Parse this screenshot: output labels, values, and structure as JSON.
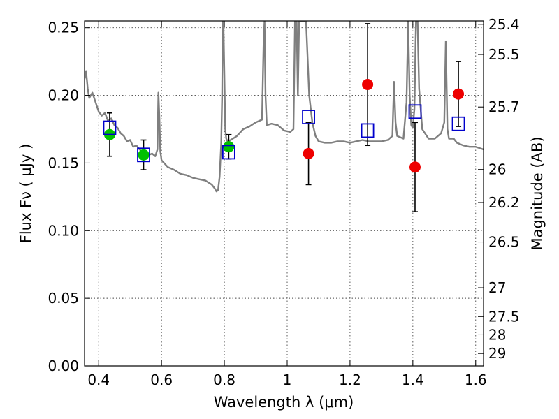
{
  "chart_data": {
    "type": "scatter",
    "xlabel": "Wavelength  λ (μm)",
    "ylabel": "Flux  Fν  ( μJy )",
    "ylabel_right": "Magnitude (AB)",
    "xlim": [
      0.355,
      1.625
    ],
    "ylim": [
      0.0,
      0.255
    ],
    "grid": true,
    "x_ticks": [
      0.4,
      0.6,
      0.8,
      1.0,
      1.2,
      1.4,
      1.6
    ],
    "x_tick_labels": [
      "0.4",
      "0.6",
      "0.8",
      "1",
      "1.2",
      "1.4",
      "1.6"
    ],
    "y_ticks": [
      0.0,
      0.05,
      0.1,
      0.15,
      0.2,
      0.25
    ],
    "y_tick_labels": [
      "0.00",
      "0.05",
      "0.10",
      "0.15",
      "0.20",
      "0.25"
    ],
    "right_ticks": [
      {
        "label": "25.4",
        "flux": 0.2525
      },
      {
        "label": "25.5",
        "flux": 0.2302
      },
      {
        "label": "25.7",
        "flux": 0.1914
      },
      {
        "label": "26",
        "flux": 0.1452
      },
      {
        "label": "26.2",
        "flux": 0.1208
      },
      {
        "label": "26.5",
        "flux": 0.0916
      },
      {
        "label": "27",
        "flux": 0.0578
      },
      {
        "label": "27.5",
        "flux": 0.0365
      },
      {
        "label": "28",
        "flux": 0.023
      },
      {
        "label": "29",
        "flux": 0.0092
      }
    ],
    "colors": {
      "model": "#7f7f7f",
      "model_photometry": "#0000cc",
      "detected": "#00c000",
      "nondetected": "#ee0000",
      "errorbar": "#000000"
    },
    "series": [
      {
        "kind": "model_spectrum",
        "x": [
          0.355,
          0.36,
          0.365,
          0.37,
          0.38,
          0.39,
          0.4,
          0.41,
          0.42,
          0.43,
          0.44,
          0.45,
          0.46,
          0.47,
          0.48,
          0.49,
          0.5,
          0.51,
          0.52,
          0.53,
          0.54,
          0.55,
          0.56,
          0.57,
          0.58,
          0.587,
          0.59,
          0.593,
          0.596,
          0.6,
          0.62,
          0.64,
          0.66,
          0.68,
          0.7,
          0.72,
          0.74,
          0.76,
          0.77,
          0.775,
          0.78,
          0.785,
          0.79,
          0.793,
          0.795,
          0.797,
          0.8,
          0.803,
          0.806,
          0.81,
          0.82,
          0.84,
          0.86,
          0.88,
          0.9,
          0.92,
          0.925,
          0.928,
          0.931,
          0.935,
          0.95,
          0.97,
          0.99,
          1.01,
          1.02,
          1.025,
          1.03,
          1.034,
          1.038,
          1.042,
          1.05,
          1.06,
          1.07,
          1.08,
          1.09,
          1.1,
          1.12,
          1.14,
          1.16,
          1.18,
          1.2,
          1.22,
          1.24,
          1.26,
          1.28,
          1.3,
          1.32,
          1.335,
          1.34,
          1.345,
          1.35,
          1.37,
          1.38,
          1.385,
          1.39,
          1.395,
          1.4,
          1.405,
          1.41,
          1.415,
          1.42,
          1.43,
          1.45,
          1.47,
          1.49,
          1.5,
          1.505,
          1.51,
          1.515,
          1.52,
          1.53,
          1.54,
          1.56,
          1.58,
          1.6,
          1.625
        ],
        "y": [
          0.212,
          0.218,
          0.205,
          0.198,
          0.202,
          0.195,
          0.188,
          0.185,
          0.187,
          0.181,
          0.183,
          0.178,
          0.176,
          0.172,
          0.17,
          0.166,
          0.167,
          0.162,
          0.163,
          0.16,
          0.158,
          0.159,
          0.156,
          0.157,
          0.155,
          0.16,
          0.202,
          0.185,
          0.159,
          0.152,
          0.147,
          0.145,
          0.142,
          0.141,
          0.139,
          0.138,
          0.137,
          0.134,
          0.131,
          0.129,
          0.13,
          0.14,
          0.165,
          0.2,
          0.255,
          0.255,
          0.215,
          0.175,
          0.168,
          0.166,
          0.167,
          0.17,
          0.175,
          0.177,
          0.18,
          0.182,
          0.24,
          0.255,
          0.2,
          0.178,
          0.179,
          0.178,
          0.174,
          0.173,
          0.175,
          0.255,
          0.255,
          0.2,
          0.255,
          0.255,
          0.255,
          0.255,
          0.2,
          0.18,
          0.17,
          0.166,
          0.165,
          0.165,
          0.166,
          0.166,
          0.165,
          0.166,
          0.167,
          0.166,
          0.166,
          0.166,
          0.167,
          0.17,
          0.21,
          0.18,
          0.17,
          0.168,
          0.195,
          0.255,
          0.2,
          0.178,
          0.176,
          0.19,
          0.255,
          0.255,
          0.205,
          0.175,
          0.168,
          0.168,
          0.172,
          0.18,
          0.24,
          0.175,
          0.168,
          0.168,
          0.168,
          0.165,
          0.163,
          0.162,
          0.162,
          0.16
        ]
      },
      {
        "kind": "model_photometry",
        "x": [
          0.435,
          0.543,
          0.814,
          1.068,
          1.256,
          1.407,
          1.545
        ],
        "y": [
          0.176,
          0.156,
          0.158,
          0.184,
          0.174,
          0.188,
          0.179
        ]
      },
      {
        "kind": "observed",
        "points": [
          {
            "x": 0.435,
            "y": 0.171,
            "err": 0.016,
            "detected": true
          },
          {
            "x": 0.543,
            "y": 0.156,
            "err": 0.011,
            "detected": true
          },
          {
            "x": 0.814,
            "y": 0.162,
            "err": 0.009,
            "detected": true
          },
          {
            "x": 1.068,
            "y": 0.157,
            "err": 0.023,
            "detected": false
          },
          {
            "x": 1.256,
            "y": 0.208,
            "err": 0.045,
            "detected": false
          },
          {
            "x": 1.407,
            "y": 0.147,
            "err": 0.033,
            "detected": false
          },
          {
            "x": 1.545,
            "y": 0.201,
            "err": 0.024,
            "detected": false
          }
        ]
      }
    ]
  }
}
